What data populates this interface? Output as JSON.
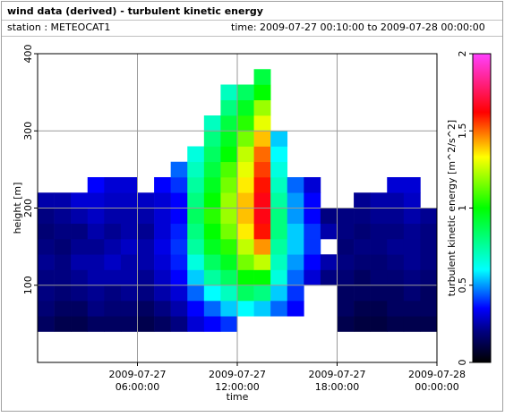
{
  "chart_data": {
    "type": "heatmap",
    "title": "wind data (derived) - turbulent kinetic energy",
    "station": "station : METEOCAT1",
    "period": "time: 2009-07-27 00:10:00 to 2009-07-28 00:00:00",
    "xlabel": "time",
    "ylabel": "height [m]",
    "colorbar_label": "turbulent kinetic energy [m^2/s^2]",
    "xlim": [
      "2009-07-27 00:00:00",
      "2009-07-28 00:00:00"
    ],
    "xticks": [
      "2009-07-27 06:00:00",
      "2009-07-27 12:00:00",
      "2009-07-27 18:00:00",
      "2009-07-28 00:00:00"
    ],
    "ylim": [
      0,
      400
    ],
    "yticks": [
      100,
      200,
      300,
      400
    ],
    "zlim": [
      0,
      2
    ],
    "zticks": [
      0,
      0.5,
      1,
      1.5,
      2
    ],
    "grid": true,
    "colorscale": [
      [
        0,
        "#000000"
      ],
      [
        0.2,
        "#000080"
      ],
      [
        0.35,
        "#0000ff"
      ],
      [
        0.6,
        "#00ffff"
      ],
      [
        1.0,
        "#00ff00"
      ],
      [
        1.33,
        "#ffff00"
      ],
      [
        1.62,
        "#ff0000"
      ],
      [
        2,
        "#ff40ff"
      ]
    ],
    "x_bins": [
      "2009-07-27 00:00:00",
      "2009-07-27 01:00:00",
      "2009-07-27 02:00:00",
      "2009-07-27 03:00:00",
      "2009-07-27 04:00:00",
      "2009-07-27 05:00:00",
      "2009-07-27 06:00:00",
      "2009-07-27 07:00:00",
      "2009-07-27 08:00:00",
      "2009-07-27 09:00:00",
      "2009-07-27 10:00:00",
      "2009-07-27 11:00:00",
      "2009-07-27 12:00:00",
      "2009-07-27 13:00:00",
      "2009-07-27 14:00:00",
      "2009-07-27 15:00:00",
      "2009-07-27 16:00:00",
      "2009-07-27 17:00:00",
      "2009-07-27 18:00:00",
      "2009-07-27 19:00:00",
      "2009-07-27 20:00:00",
      "2009-07-27 21:00:00",
      "2009-07-27 22:00:00",
      "2009-07-27 23:00:00",
      "2009-07-28 00:00:00"
    ],
    "y_bins": [
      40,
      60,
      80,
      100,
      120,
      140,
      160,
      180,
      200,
      220,
      240,
      260,
      280,
      300,
      320,
      340,
      360,
      380
    ],
    "z": [
      [
        0.15,
        0.18,
        0.2,
        0.2,
        0.22,
        0.2,
        0.18,
        0.2,
        0.25,
        null,
        null,
        null,
        null,
        null,
        null,
        null,
        null
      ],
      [
        0.12,
        0.15,
        0.18,
        0.2,
        0.2,
        0.18,
        0.2,
        0.22,
        0.25,
        null,
        null,
        null,
        null,
        null,
        null,
        null,
        null
      ],
      [
        0.12,
        0.15,
        0.2,
        0.22,
        0.25,
        0.22,
        0.2,
        0.25,
        0.3,
        null,
        null,
        null,
        null,
        null,
        null,
        null,
        null
      ],
      [
        0.15,
        0.2,
        0.22,
        0.25,
        0.25,
        0.22,
        0.25,
        0.28,
        0.3,
        0.35,
        null,
        null,
        null,
        null,
        null,
        null,
        null
      ],
      [
        0.15,
        0.18,
        0.2,
        0.25,
        0.28,
        0.25,
        0.22,
        0.25,
        0.28,
        0.3,
        null,
        null,
        null,
        null,
        null,
        null,
        null
      ],
      [
        0.15,
        0.18,
        0.22,
        0.25,
        0.25,
        0.28,
        0.25,
        0.25,
        0.28,
        0.3,
        null,
        null,
        null,
        null,
        null,
        null,
        null
      ],
      [
        0.12,
        0.15,
        0.2,
        0.22,
        0.25,
        0.25,
        0.22,
        0.25,
        0.28,
        null,
        null,
        null,
        null,
        null,
        null,
        null,
        null
      ],
      [
        0.15,
        0.2,
        0.25,
        0.28,
        0.3,
        0.32,
        0.3,
        0.3,
        0.3,
        0.35,
        null,
        null,
        null,
        null,
        null,
        null,
        null
      ],
      [
        0.2,
        0.25,
        0.3,
        0.35,
        0.38,
        0.4,
        0.38,
        0.35,
        0.35,
        0.4,
        0.45,
        null,
        null,
        null,
        null,
        null,
        null
      ],
      [
        0.3,
        0.35,
        0.45,
        0.55,
        0.65,
        0.75,
        0.8,
        0.85,
        0.8,
        0.75,
        0.7,
        0.65,
        null,
        null,
        null,
        null,
        null
      ],
      [
        0.35,
        0.45,
        0.6,
        0.75,
        0.85,
        0.95,
        1.0,
        1.05,
        1.0,
        0.95,
        0.9,
        0.85,
        0.8,
        0.7,
        null,
        null,
        null
      ],
      [
        0.4,
        0.55,
        0.7,
        0.85,
        0.95,
        1.05,
        1.15,
        1.2,
        1.2,
        1.15,
        1.1,
        1.0,
        0.95,
        0.9,
        0.8,
        0.7,
        null
      ],
      [
        null,
        0.6,
        0.85,
        1.0,
        1.15,
        1.25,
        1.35,
        1.4,
        1.4,
        1.35,
        1.3,
        1.25,
        1.15,
        1.05,
        0.95,
        0.85,
        null
      ],
      [
        null,
        0.55,
        0.8,
        1.0,
        1.25,
        1.45,
        1.6,
        1.65,
        1.65,
        1.6,
        1.55,
        1.5,
        1.4,
        1.3,
        1.2,
        1.0,
        0.9
      ],
      [
        null,
        0.45,
        0.55,
        0.65,
        0.7,
        0.75,
        0.8,
        0.8,
        0.75,
        0.7,
        0.65,
        0.6,
        0.55,
        null,
        null,
        null,
        null
      ],
      [
        null,
        0.35,
        0.4,
        0.45,
        0.5,
        0.55,
        0.55,
        0.5,
        0.5,
        0.45,
        null,
        null,
        null,
        null,
        null,
        null,
        null
      ],
      [
        null,
        null,
        null,
        0.3,
        0.35,
        0.4,
        0.4,
        0.35,
        0.35,
        0.3,
        null,
        null,
        null,
        null,
        null,
        null,
        null
      ],
      [
        null,
        null,
        null,
        0.2,
        0.25,
        null,
        0.25,
        0.2,
        null,
        null,
        null,
        null,
        null,
        null,
        null,
        null,
        null
      ],
      [
        0.12,
        0.15,
        0.15,
        0.18,
        0.2,
        0.18,
        0.2,
        0.2,
        null,
        null,
        null,
        null,
        null,
        null,
        null,
        null,
        null
      ],
      [
        0.1,
        0.12,
        0.15,
        0.15,
        0.18,
        0.2,
        0.18,
        0.2,
        0.22,
        null,
        null,
        null,
        null,
        null,
        null,
        null,
        null
      ],
      [
        0.1,
        0.12,
        0.15,
        0.18,
        0.18,
        0.2,
        0.2,
        0.22,
        0.25,
        null,
        null,
        null,
        null,
        null,
        null,
        null,
        null
      ],
      [
        0.12,
        0.15,
        0.15,
        0.18,
        0.2,
        0.22,
        0.2,
        0.22,
        0.25,
        0.3,
        null,
        null,
        null,
        null,
        null,
        null,
        null
      ],
      [
        0.12,
        0.15,
        0.18,
        0.2,
        0.22,
        0.22,
        0.22,
        0.25,
        0.28,
        0.3,
        null,
        null,
        null,
        null,
        null,
        null,
        null
      ],
      [
        0.12,
        0.15,
        0.15,
        0.18,
        0.2,
        0.2,
        0.2,
        0.22,
        null,
        null,
        null,
        null,
        null,
        null,
        null,
        null,
        null
      ]
    ]
  }
}
